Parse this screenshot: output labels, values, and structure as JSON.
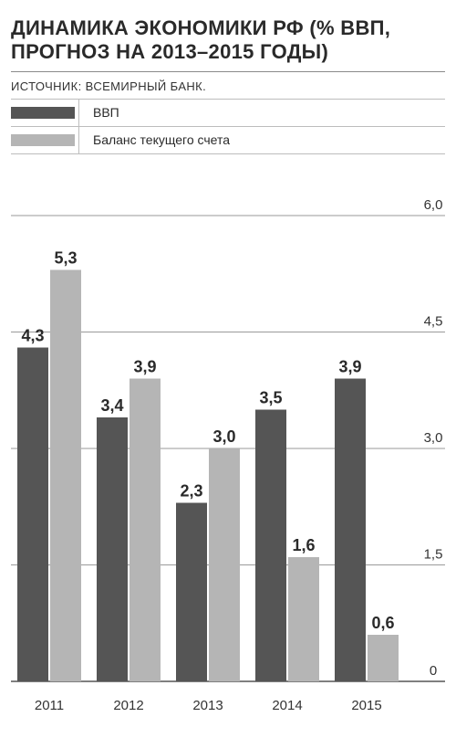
{
  "header": {
    "title": "ДИНАМИКА ЭКОНОМИКИ РФ (% ВВП, ПРОГНОЗ НА 2013–2015 ГОДЫ)",
    "source": "ИСТОЧНИК: ВСЕМИРНЫЙ БАНК."
  },
  "legend": [
    {
      "label": "ВВП",
      "color": "#555555"
    },
    {
      "label": "Баланс текущего счета",
      "color": "#b5b5b5"
    }
  ],
  "chart_data": {
    "type": "bar",
    "title": "ДИНАМИКА ЭКОНОМИКИ РФ (% ВВП, ПРОГНОЗ НА 2013–2015 ГОДЫ)",
    "categories": [
      "2011",
      "2012",
      "2013",
      "2014",
      "2015"
    ],
    "series": [
      {
        "name": "ВВП",
        "values": [
          4.3,
          3.4,
          2.3,
          3.5,
          3.9
        ],
        "labels": [
          "4,3",
          "3,4",
          "2,3",
          "3,5",
          "3,9"
        ],
        "color": "#555555"
      },
      {
        "name": "Баланс текущего счета",
        "values": [
          5.3,
          3.9,
          3.0,
          1.6,
          0.6
        ],
        "labels": [
          "5,3",
          "3,9",
          "3,0",
          "1,6",
          "0,6"
        ],
        "color": "#b5b5b5"
      }
    ],
    "yticks": [
      0,
      1.5,
      3.0,
      4.5,
      6.0
    ],
    "ytick_labels": [
      "0",
      "1,5",
      "3,0",
      "4,5",
      "6,0"
    ],
    "ylim": [
      0,
      6.0
    ],
    "grid": true,
    "y_axis_position": "right",
    "legend_position": "top-left"
  }
}
